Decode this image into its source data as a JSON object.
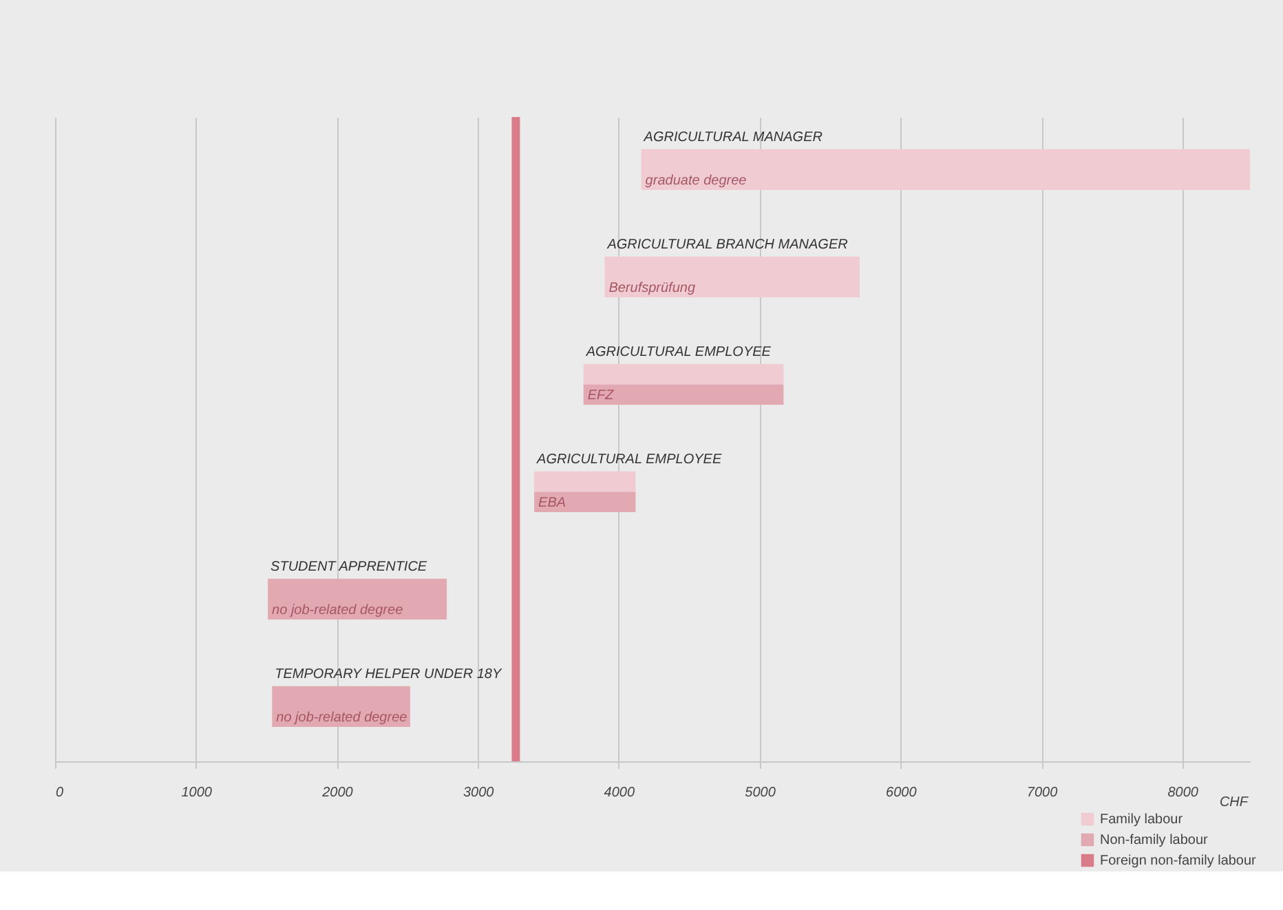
{
  "chart_data": {
    "type": "bar",
    "orientation": "horizontal",
    "xlabel": "CHF",
    "categories": [
      "AGRICULTURAL MANAGER",
      "AGRICULTURAL BRANCH MANAGER",
      "AGRICULTURAL EMPLOYEE",
      "AGRICULTURAL EMPLOYEE",
      "STUDENT APPRENTICE",
      "TEMPORARY HELPER UNDER 18Y"
    ],
    "series": [
      {
        "name": "Family labour",
        "color": "#f0ccd2",
        "base": [
          4160,
          3900,
          3750,
          3400,
          null,
          null
        ],
        "values": [
          4320,
          1810,
          1420,
          720,
          null,
          null
        ]
      },
      {
        "name": "Non-family labour",
        "color": "#e3a9b2",
        "base": [
          null,
          null,
          3750,
          3400,
          1510,
          1540
        ],
        "values": [
          null,
          null,
          1420,
          720,
          1270,
          980
        ]
      }
    ],
    "annotations": [
      "graduate degree",
      "Berufsprüfung",
      "EFZ",
      "EBA",
      "no job-related degree",
      "no job-related degree"
    ],
    "ref_lines": [
      {
        "axis": "x",
        "value": 3270,
        "label": "Foreign non-family labour",
        "color": "#d97b89"
      }
    ],
    "xlim": [
      0,
      8480
    ],
    "xticks": [
      0,
      1000,
      2000,
      3000,
      4000,
      5000,
      6000,
      7000,
      8000
    ],
    "grid": "x",
    "legend": "bottom right"
  }
}
